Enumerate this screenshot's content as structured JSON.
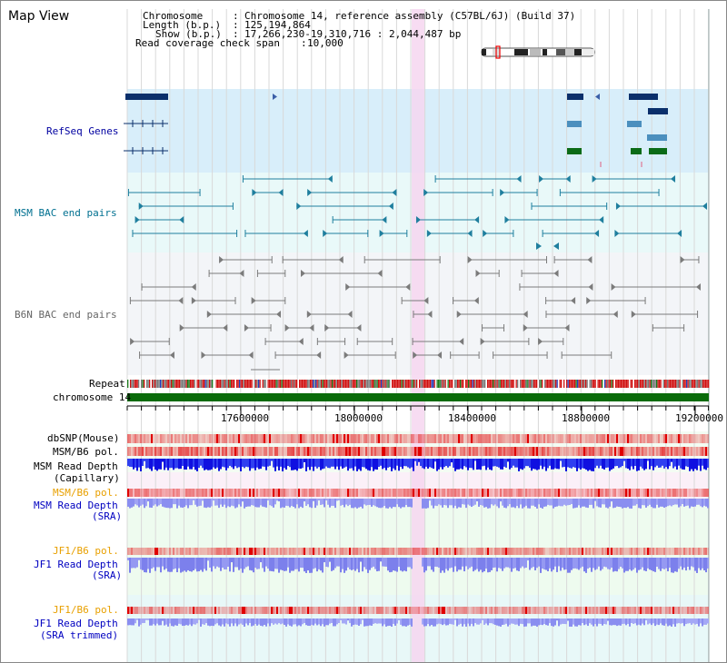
{
  "page": {
    "title": "Map View"
  },
  "info": {
    "chromosome_label": "Chromosome",
    "chromosome_value": "Chromosome 14, reference assembly (C57BL/6J) (Build 37)",
    "length_label": "Length (b.p.)",
    "length_value": "125,194,864",
    "show_label": "Show (b.p.)",
    "show_value": "17,266,230-19,310,716 : 2,044,487 bp",
    "coverage_label": "Read coverage check span",
    "coverage_value": "10,000"
  },
  "colors": {
    "refseq_bg": "#d8eefa",
    "bac_bg": "#e9f9f9",
    "read_bg": "#eefbef",
    "highlight": "#f6d6f0",
    "refseq_dark": "#0a2f6b",
    "refseq_mid": "#4b8fbe",
    "refseq_green": "#0b6b17",
    "msm_teal": "#1f7f9e",
    "b6n_gray": "#7b7b7b",
    "chrom_green": "#0a6b0a",
    "orange": "#e8a000",
    "blue_text": "#0000c0"
  },
  "tracks": {
    "refseq": "RefSeq Genes",
    "msm_bac": "MSM BAC end pairs",
    "b6n_bac": "B6N BAC end pairs",
    "repeat": "Repeat",
    "chromosome": "chromosome 14",
    "dbsnp": "dbSNP(Mouse)",
    "msm_b6_pol_1": "MSM/B6 pol.",
    "msm_read_depth_cap": [
      "MSM Read Depth",
      "(Capillary)"
    ],
    "msm_b6_pol_2": "MSM/B6 pol.",
    "msm_read_depth_sra": [
      "MSM Read Depth",
      "(SRA)"
    ],
    "jf1_b6_pol_1": "JF1/B6 pol.",
    "jf1_read_depth_sra": [
      "JF1 Read Depth",
      "(SRA)"
    ],
    "jf1_b6_pol_2": "JF1/B6 pol.",
    "jf1_read_depth_trim": [
      "JF1 Read Depth",
      "(SRA trimmed)"
    ]
  },
  "axis": {
    "ticks": [
      "17600000",
      "18000000",
      "18400000",
      "18800000",
      "19200000"
    ]
  }
}
